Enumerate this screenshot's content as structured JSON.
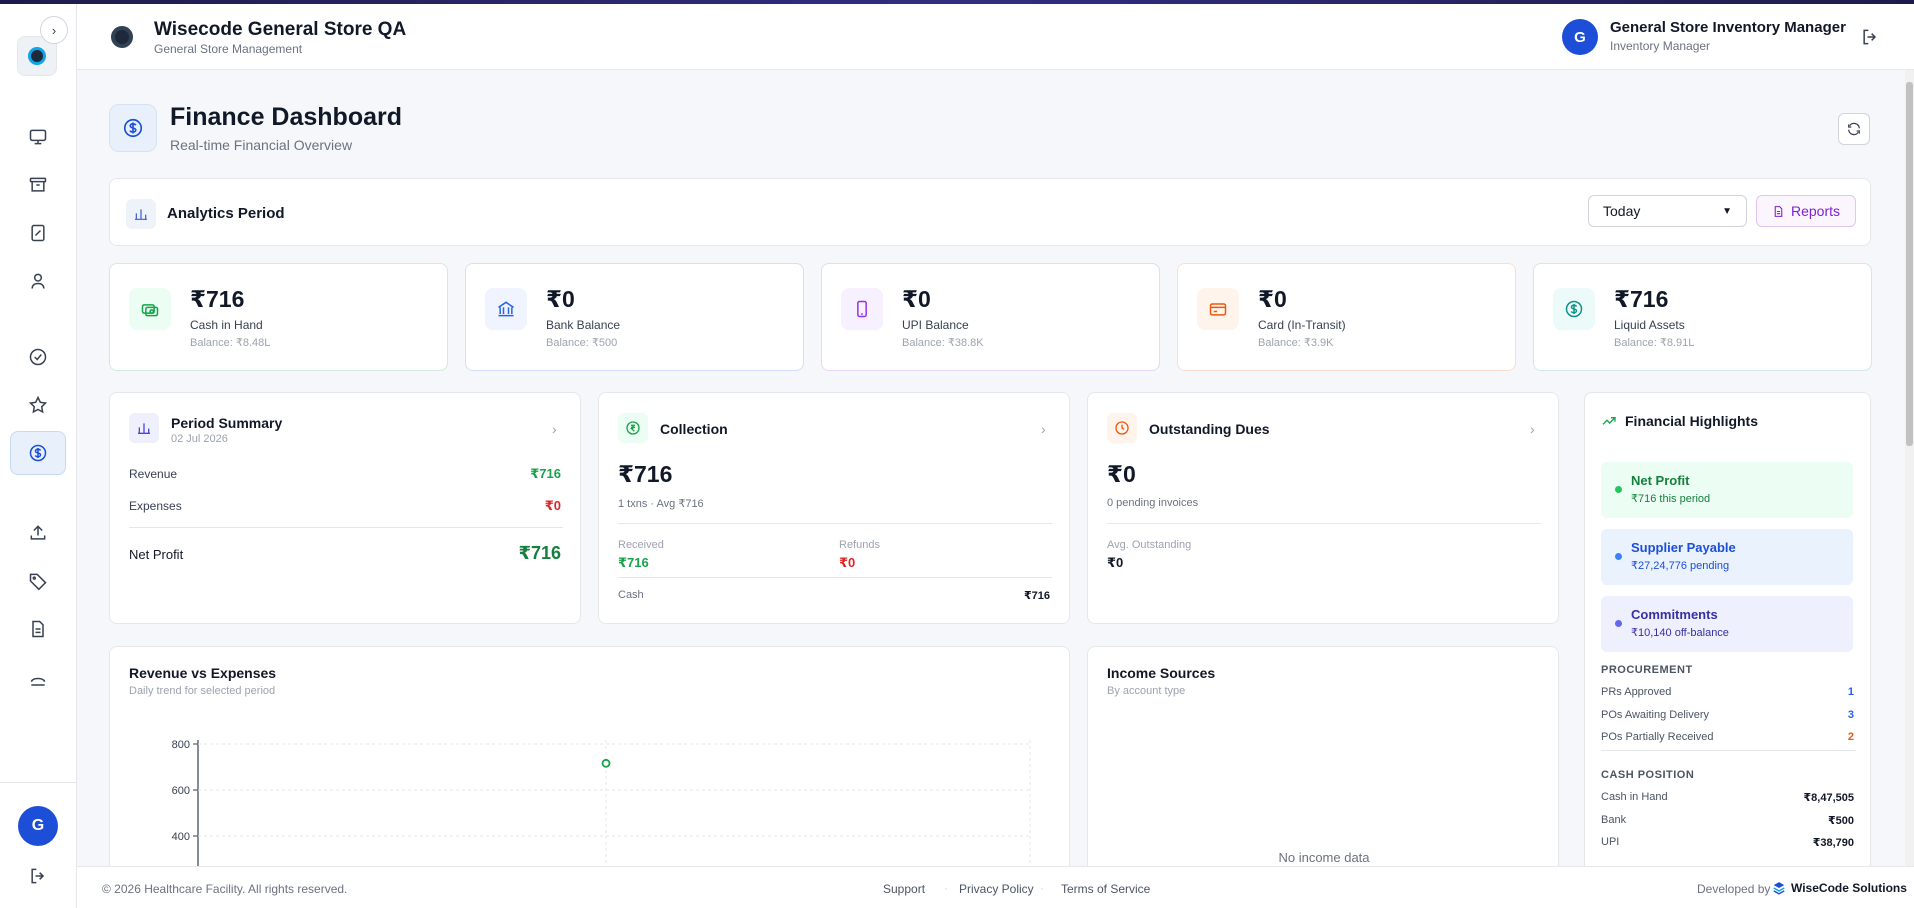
{
  "app": {
    "title": "Wisecode General Store QA",
    "subtitle": "General Store Management"
  },
  "user": {
    "initial": "G",
    "name": "General Store Inventory Manager",
    "role": "Inventory Manager"
  },
  "sidebar": {
    "toggle_glyph": "›",
    "items": [
      {
        "icon": "monitor-icon"
      },
      {
        "icon": "archive-icon"
      },
      {
        "icon": "receipt-icon"
      },
      {
        "icon": "user-icon"
      },
      {
        "icon": "check-circle-icon"
      },
      {
        "icon": "star-icon"
      },
      {
        "icon": "dollar-circle-icon",
        "active": true
      },
      {
        "icon": "upload-icon"
      },
      {
        "icon": "tag-icon"
      },
      {
        "icon": "document-icon"
      },
      {
        "icon": "more-icon"
      }
    ],
    "avatar_initial": "G"
  },
  "page": {
    "title": "Finance Dashboard",
    "subtitle": "Real-time Financial Overview"
  },
  "period": {
    "label": "Analytics Period",
    "selected": "Today",
    "reports_label": "Reports"
  },
  "stats": [
    {
      "value": "₹716",
      "label": "Cash in Hand",
      "balance": "Balance: ₹8.48L",
      "icon": "cash-icon",
      "color": "#16a34a",
      "bg": "#ecfdf3"
    },
    {
      "value": "₹0",
      "label": "Bank Balance",
      "balance": "Balance: ₹500",
      "icon": "bank-icon",
      "color": "#2563eb",
      "bg": "#eff4fe"
    },
    {
      "value": "₹0",
      "label": "UPI Balance",
      "balance": "Balance: ₹38.8K",
      "icon": "phone-icon",
      "color": "#9333ea",
      "bg": "#f7f0fe"
    },
    {
      "value": "₹0",
      "label": "Card (In-Transit)",
      "balance": "Balance: ₹3.9K",
      "icon": "card-icon",
      "color": "#ea580c",
      "bg": "#fff4ec"
    },
    {
      "value": "₹716",
      "label": "Liquid Assets",
      "balance": "Balance: ₹8.91L",
      "icon": "dollar-icon",
      "color": "#0d9488",
      "bg": "#ecfbf9"
    }
  ],
  "period_summary": {
    "title": "Period Summary",
    "date": "02 Jul 2026",
    "revenue_label": "Revenue",
    "revenue": "₹716",
    "expenses_label": "Expenses",
    "expenses": "₹0",
    "net_label": "Net Profit",
    "net": "₹716"
  },
  "collection": {
    "title": "Collection",
    "amount": "₹716",
    "meta": "1 txns · Avg ₹716",
    "received_label": "Received",
    "received": "₹716",
    "refunds_label": "Refunds",
    "refunds": "₹0",
    "cash_label": "Cash",
    "cash": "₹716"
  },
  "outstanding": {
    "title": "Outstanding Dues",
    "amount": "₹0",
    "meta": "0 pending invoices",
    "avg_label": "Avg. Outstanding",
    "avg": "₹0"
  },
  "highlights": {
    "title": "Financial Highlights",
    "items": [
      {
        "title": "Net Profit",
        "sub": "₹716 this period",
        "dot": "#22c55e",
        "bg": "#ecfdf3",
        "fg": "#15803d"
      },
      {
        "title": "Supplier Payable",
        "sub": "₹27,24,776 pending",
        "dot": "#3b82f6",
        "bg": "#eaf2fe",
        "fg": "#1d4ed8"
      },
      {
        "title": "Commitments",
        "sub": "₹10,140 off-balance",
        "dot": "#6366f1",
        "bg": "#eef0fe",
        "fg": "#3730a3"
      }
    ],
    "procurement_head": "PROCUREMENT",
    "procurement": [
      {
        "label": "PRs Approved",
        "value": "1",
        "color": "#2563eb"
      },
      {
        "label": "POs Awaiting Delivery",
        "value": "3",
        "color": "#2563eb"
      },
      {
        "label": "POs Partially Received",
        "value": "2",
        "color": "#ea580c"
      }
    ],
    "cash_head": "CASH POSITION",
    "cash": [
      {
        "label": "Cash in Hand",
        "value": "₹8,47,505"
      },
      {
        "label": "Bank",
        "value": "₹500"
      },
      {
        "label": "UPI",
        "value": "₹38,790"
      }
    ]
  },
  "revenue_chart": {
    "title": "Revenue vs Expenses",
    "subtitle": "Daily trend for selected period"
  },
  "chart_data": {
    "type": "line",
    "title": "Revenue vs Expenses",
    "ylim": [
      0,
      800
    ],
    "yticks": [
      400,
      600,
      800
    ],
    "points": [
      {
        "y": 716
      }
    ]
  },
  "income": {
    "title": "Income Sources",
    "subtitle": "By account type",
    "empty": "No income data"
  },
  "footer": {
    "copyright": "© 2026 Healthcare Facility. All rights reserved.",
    "support": "Support",
    "privacy": "Privacy Policy",
    "terms": "Terms of Service",
    "developed_by": "Developed by",
    "company": "WiseCode Solutions"
  }
}
